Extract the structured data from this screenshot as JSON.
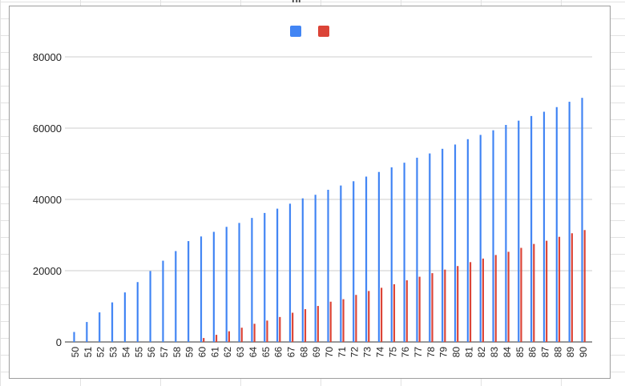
{
  "header": {
    "text": "nr"
  },
  "chart_data": {
    "type": "bar",
    "title": "",
    "xlabel": "",
    "ylabel": "",
    "ylim": [
      0,
      80000
    ],
    "yticks": [
      0,
      20000,
      40000,
      60000,
      80000
    ],
    "grid": true,
    "legend_position": "top",
    "categories": [
      "50",
      "51",
      "52",
      "53",
      "54",
      "55",
      "56",
      "57",
      "58",
      "59",
      "60",
      "61",
      "62",
      "63",
      "64",
      "65",
      "66",
      "67",
      "68",
      "69",
      "70",
      "71",
      "72",
      "73",
      "74",
      "75",
      "76",
      "77",
      "78",
      "79",
      "80",
      "81",
      "82",
      "83",
      "84",
      "85",
      "86",
      "87",
      "88",
      "89",
      "90"
    ],
    "series": [
      {
        "color": "#4285f4",
        "values": [
          2800,
          5600,
          8300,
          11100,
          13900,
          16800,
          19900,
          22800,
          25500,
          28300,
          29600,
          30900,
          32300,
          33400,
          34800,
          36200,
          37400,
          38800,
          40300,
          41300,
          42700,
          43900,
          45100,
          46400,
          47700,
          49000,
          50300,
          51700,
          52900,
          54200,
          55400,
          56900,
          58100,
          59400,
          60900,
          62100,
          63400,
          64600,
          65900,
          67400,
          68500
        ]
      },
      {
        "color": "#db4437",
        "values": [
          0,
          0,
          0,
          0,
          0,
          0,
          0,
          0,
          0,
          0,
          1100,
          2000,
          3000,
          4000,
          5100,
          6000,
          7000,
          8200,
          9200,
          10100,
          11300,
          12000,
          13200,
          14300,
          15200,
          16200,
          17300,
          18300,
          19300,
          20300,
          21300,
          22400,
          23400,
          24400,
          25300,
          26400,
          27500,
          28400,
          29500,
          30500,
          31400
        ]
      }
    ]
  }
}
